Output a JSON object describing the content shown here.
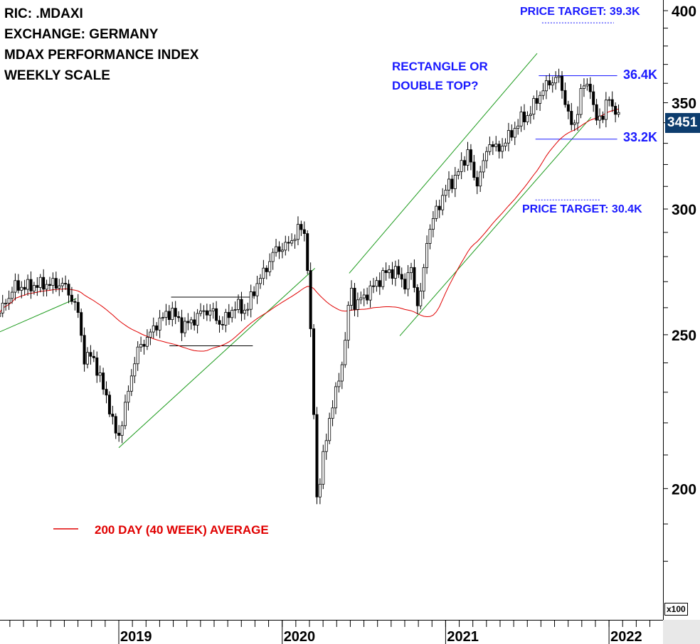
{
  "header": {
    "lines": [
      "RIC: .MDAXI",
      "EXCHANGE: GERMANY",
      "MDAX PERFORMANCE INDEX",
      "WEEKLY SCALE"
    ]
  },
  "annotations": {
    "pattern": [
      "RECTANGLE OR",
      "DOUBLE TOP?"
    ],
    "resistance": "36.4K",
    "support": "33.2K",
    "target_up": "PRICE TARGET: 39.3K",
    "target_down": "PRICE TARGET: 30.4K"
  },
  "legend": {
    "ma_label": "200 DAY (40 WEEK) AVERAGE"
  },
  "last_price": "3451",
  "axis_multiplier": "x100",
  "colors": {
    "ma": "#e00000",
    "trend": "#1a9a1a",
    "annotation": "#1a1aff",
    "badge": "#0d3d6e"
  },
  "chart_data": {
    "type": "candlestick",
    "scale": "log",
    "ylim": [
      170,
      410
    ],
    "xlim": [
      2018.27,
      2022.33
    ],
    "y_ticks": [
      200,
      250,
      300,
      350,
      400
    ],
    "y_tick_labels": [
      "200",
      "250",
      "300",
      "350",
      "400"
    ],
    "x_ticks": [
      2019,
      2020,
      2021,
      2022
    ],
    "x_tick_labels": [
      "2019",
      "2020",
      "2021",
      "2022"
    ],
    "close_path": [
      [
        2018.27,
        258
      ],
      [
        2018.36,
        268
      ],
      [
        2018.44,
        268
      ],
      [
        2018.53,
        269
      ],
      [
        2018.66,
        269
      ],
      [
        2018.71,
        264
      ],
      [
        2018.75,
        258
      ],
      [
        2018.77,
        250
      ],
      [
        2018.79,
        241
      ],
      [
        2018.84,
        243
      ],
      [
        2018.88,
        235
      ],
      [
        2018.93,
        228
      ],
      [
        2018.97,
        218
      ],
      [
        2019.0,
        216
      ],
      [
        2019.04,
        225
      ],
      [
        2019.08,
        237
      ],
      [
        2019.12,
        245
      ],
      [
        2019.19,
        250
      ],
      [
        2019.23,
        254
      ],
      [
        2019.32,
        259
      ],
      [
        2019.39,
        253
      ],
      [
        2019.45,
        255
      ],
      [
        2019.52,
        259
      ],
      [
        2019.58,
        258
      ],
      [
        2019.63,
        253
      ],
      [
        2019.67,
        258
      ],
      [
        2019.74,
        261
      ],
      [
        2019.78,
        258
      ],
      [
        2019.82,
        266
      ],
      [
        2019.89,
        274
      ],
      [
        2019.96,
        283
      ],
      [
        2020.02,
        284
      ],
      [
        2020.07,
        288
      ],
      [
        2020.11,
        292
      ],
      [
        2020.13,
        292
      ],
      [
        2020.15,
        283
      ],
      [
        2020.17,
        255
      ],
      [
        2020.2,
        215
      ],
      [
        2020.21,
        197
      ],
      [
        2020.23,
        202
      ],
      [
        2020.26,
        212
      ],
      [
        2020.29,
        222
      ],
      [
        2020.31,
        226
      ],
      [
        2020.35,
        235
      ],
      [
        2020.38,
        245
      ],
      [
        2020.42,
        269
      ],
      [
        2020.44,
        261
      ],
      [
        2020.48,
        263
      ],
      [
        2020.53,
        266
      ],
      [
        2020.57,
        269
      ],
      [
        2020.64,
        274
      ],
      [
        2020.7,
        274
      ],
      [
        2020.75,
        269
      ],
      [
        2020.79,
        275
      ],
      [
        2020.83,
        261
      ],
      [
        2020.86,
        269
      ],
      [
        2020.88,
        286
      ],
      [
        2020.92,
        295
      ],
      [
        2020.96,
        302
      ],
      [
        2021.01,
        310
      ],
      [
        2021.05,
        313
      ],
      [
        2021.1,
        320
      ],
      [
        2021.14,
        327
      ],
      [
        2021.18,
        310
      ],
      [
        2021.23,
        320
      ],
      [
        2021.27,
        331
      ],
      [
        2021.32,
        326
      ],
      [
        2021.36,
        331
      ],
      [
        2021.4,
        334
      ],
      [
        2021.45,
        341
      ],
      [
        2021.51,
        344
      ],
      [
        2021.56,
        352
      ],
      [
        2021.6,
        357
      ],
      [
        2021.64,
        361
      ],
      [
        2021.69,
        363
      ],
      [
        2021.73,
        352
      ],
      [
        2021.75,
        344
      ],
      [
        2021.78,
        336
      ],
      [
        2021.8,
        344
      ],
      [
        2021.84,
        359
      ],
      [
        2021.89,
        359
      ],
      [
        2021.91,
        341
      ],
      [
        2021.96,
        344
      ],
      [
        2022.0,
        352
      ],
      [
        2022.03,
        347
      ],
      [
        2022.05,
        345.1
      ]
    ],
    "moving_average": {
      "name": "200 DAY (40 WEEK) AVERAGE",
      "period_weeks": 40
    },
    "trendlines": [
      {
        "name": "early-support",
        "color": "green",
        "points": [
          [
            2018.27,
            251
          ],
          [
            2018.74,
            263.5
          ]
        ]
      },
      {
        "name": "2019-uptrend",
        "color": "green",
        "points": [
          [
            2019.0,
            212.2
          ],
          [
            2020.2,
            275.3
          ]
        ]
      },
      {
        "name": "channel-upper",
        "color": "green",
        "points": [
          [
            2020.41,
            273.3
          ],
          [
            2021.56,
            376
          ]
        ]
      },
      {
        "name": "channel-lower",
        "color": "green",
        "points": [
          [
            2020.72,
            249.6
          ],
          [
            2021.89,
            342.7
          ]
        ]
      },
      {
        "name": "2019-rectangle-top",
        "color": "black",
        "points": [
          [
            2019.32,
            264
          ],
          [
            2019.82,
            264
          ]
        ]
      },
      {
        "name": "2019-rectangle-bottom",
        "color": "black",
        "points": [
          [
            2019.31,
            246
          ],
          [
            2019.82,
            246
          ]
        ]
      },
      {
        "name": "resistance-36.4K",
        "color": "blue",
        "points": [
          [
            2021.57,
            364
          ],
          [
            2022.05,
            364
          ]
        ]
      },
      {
        "name": "support-33.2K",
        "color": "blue",
        "points": [
          [
            2021.55,
            332
          ],
          [
            2022.05,
            332
          ]
        ]
      },
      {
        "name": "target-39.3K",
        "color": "blue",
        "dotted": true,
        "points": [
          [
            2021.59,
            393
          ],
          [
            2022.03,
            393
          ]
        ]
      },
      {
        "name": "target-30.4K",
        "color": "blue",
        "dotted": true,
        "points": [
          [
            2021.55,
            304
          ],
          [
            2021.95,
            304
          ]
        ]
      }
    ]
  }
}
